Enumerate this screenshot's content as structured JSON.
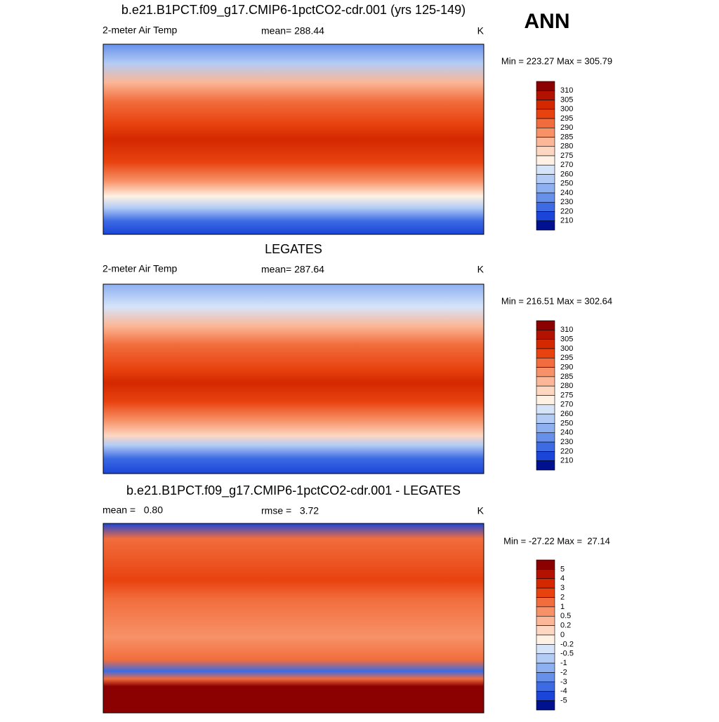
{
  "header": {
    "season": "ANN"
  },
  "panels": [
    {
      "title": "b.e21.B1PCT.f09_g17.CMIP6-1pctCO2-cdr.001 (yrs 125-149)",
      "left_label": "2-meter Air Temp",
      "center_label": "mean= 288.44",
      "units": "K",
      "range_text": "Min = 223.27 Max = 305.79",
      "colorbar": {
        "colors": [
          "#8b0000",
          "#b31200",
          "#d42800",
          "#e8420f",
          "#f26d3d",
          "#f79268",
          "#fbb797",
          "#fdd7c2",
          "#fff2e4",
          "#d6e4fa",
          "#b3ccf5",
          "#8db0f0",
          "#6690ea",
          "#3c6be4",
          "#1a45d8",
          "#00118f"
        ],
        "labels": [
          "310",
          "305",
          "300",
          "295",
          "290",
          "285",
          "280",
          "275",
          "270",
          "260",
          "250",
          "240",
          "230",
          "220",
          "210"
        ]
      }
    },
    {
      "title": "LEGATES",
      "left_label": "2-meter Air Temp",
      "center_label": "mean= 287.64",
      "units": "K",
      "range_text": "Min = 216.51 Max = 302.64",
      "colorbar": {
        "colors": [
          "#8b0000",
          "#b31200",
          "#d42800",
          "#e8420f",
          "#f26d3d",
          "#f79268",
          "#fbb797",
          "#fdd7c2",
          "#fff2e4",
          "#d6e4fa",
          "#b3ccf5",
          "#8db0f0",
          "#6690ea",
          "#3c6be4",
          "#1a45d8",
          "#00118f"
        ],
        "labels": [
          "310",
          "305",
          "300",
          "295",
          "290",
          "285",
          "280",
          "275",
          "270",
          "260",
          "250",
          "240",
          "230",
          "220",
          "210"
        ]
      }
    },
    {
      "title": "b.e21.B1PCT.f09_g17.CMIP6-1pctCO2-cdr.001 - LEGATES",
      "left_label": "mean =   0.80",
      "center_label": "rmse =   3.72",
      "units": "K",
      "range_text": "Min = -27.22 Max =  27.14",
      "colorbar": {
        "colors": [
          "#8b0000",
          "#b31200",
          "#d42800",
          "#e8420f",
          "#f26d3d",
          "#f79268",
          "#fbb797",
          "#fdd7c2",
          "#fff2e4",
          "#d6e4fa",
          "#b3ccf5",
          "#8db0f0",
          "#6690ea",
          "#3c6be4",
          "#1a45d8",
          "#00118f"
        ],
        "labels": [
          "5",
          "4",
          "3",
          "2",
          "1",
          "0.5",
          "0.2",
          "0",
          "-0.2",
          "-0.5",
          "-1",
          "-2",
          "-3",
          "-4",
          "-5"
        ]
      }
    }
  ]
}
